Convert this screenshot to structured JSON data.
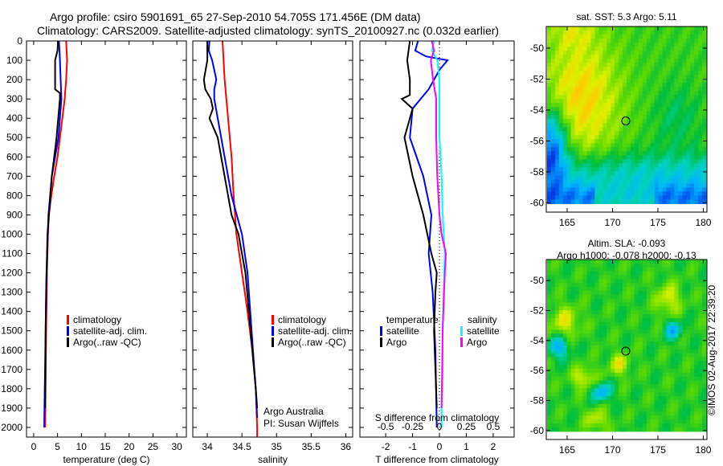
{
  "title": {
    "line1": "Argo profile: csiro 5901691_65 27-Sep-2010 54.705S 171.456E (DM data)",
    "line2": "Climatology: CARS2009. Satellite-adjusted climatology: synTS_20100927.nc (0.032d earlier)"
  },
  "credit": "©IMOS 02-Aug-2017 22:39:20",
  "colors": {
    "climatology": "#ff0000",
    "satellite": "#0000ff",
    "argo": "#000000",
    "sal_satellite": "#00ffff",
    "sal_argo": "#ff00ff"
  },
  "chart_data": [
    {
      "type": "line",
      "xlabel": "temperature (deg C)",
      "xticks": [
        0,
        5,
        10,
        15,
        20,
        25,
        30
      ],
      "xlim": [
        -1.5,
        32
      ],
      "ylim": [
        0,
        2050
      ],
      "yticks": [
        0,
        100,
        200,
        300,
        400,
        500,
        600,
        700,
        800,
        900,
        1000,
        1100,
        1200,
        1300,
        1400,
        1500,
        1600,
        1700,
        1800,
        1900,
        2000
      ],
      "legend": [
        "climatology",
        "satellite-adj. clim.",
        "Argo(..raw -QC)"
      ],
      "series": [
        {
          "name": "climatology",
          "color": "#ff0000",
          "depth": [
            0,
            100,
            200,
            300,
            400,
            500,
            600,
            700,
            800,
            900,
            1000,
            1200,
            1500,
            2000
          ],
          "values": [
            6.8,
            7.0,
            6.8,
            6.5,
            6.0,
            5.5,
            5.0,
            4.3,
            3.7,
            3.2,
            3.0,
            2.8,
            2.6,
            2.4
          ]
        },
        {
          "name": "satellite-adj. clim.",
          "color": "#0000ff",
          "depth": [
            0,
            100,
            300,
            500,
            700,
            900,
            1200,
            1500,
            2000
          ],
          "values": [
            5.3,
            5.5,
            5.8,
            5.2,
            3.8,
            3.1,
            2.7,
            2.5,
            2.2
          ]
        },
        {
          "name": "Argo(..raw -QC)",
          "color": "#000000",
          "depth": [
            0,
            50,
            100,
            250,
            270,
            300,
            500,
            700,
            900,
            1000,
            1300,
            1500,
            1900
          ],
          "values": [
            5.1,
            5.0,
            4.5,
            4.5,
            5.5,
            5.5,
            4.8,
            3.8,
            3.2,
            2.9,
            2.6,
            2.5,
            2.4
          ]
        }
      ]
    },
    {
      "type": "line",
      "xlabel": "salinity",
      "xticks": [
        34,
        34.5,
        35,
        35.5,
        36
      ],
      "xlim": [
        33.79,
        36.1
      ],
      "ylim": [
        0,
        2050
      ],
      "legend": [
        "climatology",
        "satellite-adj. clim.",
        "Argo(..raw -QC)"
      ],
      "annotation": [
        "Argo Australia",
        "PI: Susan Wijffels"
      ],
      "series": [
        {
          "name": "climatology",
          "color": "#ff0000",
          "depth": [
            0,
            200,
            400,
            600,
            800,
            1000,
            1200,
            1400,
            1600,
            1800,
            2000,
            2050
          ],
          "values": [
            34.22,
            34.25,
            34.3,
            34.35,
            34.38,
            34.42,
            34.5,
            34.58,
            34.65,
            34.7,
            34.72,
            34.72
          ]
        },
        {
          "name": "satellite-adj. clim.",
          "color": "#0000ff",
          "depth": [
            0,
            50,
            100,
            200,
            250,
            300,
            400,
            600,
            800,
            1000,
            1200,
            1400,
            1600,
            1800,
            1950
          ],
          "values": [
            34.03,
            34.02,
            34.07,
            34.13,
            34.1,
            34.1,
            34.15,
            34.25,
            34.35,
            34.5,
            34.58,
            34.62,
            34.66,
            34.7,
            34.72
          ]
        },
        {
          "name": "Argo(..raw -QC)",
          "color": "#000000",
          "depth": [
            0,
            100,
            200,
            250,
            300,
            350,
            400,
            500,
            700,
            900,
            1000,
            1200,
            1400,
            1600,
            1800,
            1900
          ],
          "values": [
            34.0,
            34.0,
            33.95,
            33.97,
            34.05,
            34.08,
            34.03,
            34.15,
            34.25,
            34.35,
            34.45,
            34.55,
            34.6,
            34.65,
            34.7,
            34.72
          ]
        }
      ]
    },
    {
      "type": "line",
      "xlabel": "T difference from climatology",
      "xticks": [
        -2,
        -1,
        0,
        1,
        2
      ],
      "xlim": [
        -2.96,
        2.78
      ],
      "x2label": "S difference from climatology",
      "x2ticks": [
        -0.5,
        -0.25,
        0,
        0.25,
        0.5
      ],
      "x2tick_labels": [
        "-0.5",
        "-0.25",
        "0",
        "0.25",
        "0.5"
      ],
      "ylim": [
        0,
        2050
      ],
      "legend_headers": [
        "temperature",
        "salinity"
      ],
      "legend": [
        "satellite",
        "Argo",
        "satellite",
        "Argo"
      ],
      "series": [
        {
          "name": "T satellite",
          "color": "#0000ff",
          "axis": "T",
          "depth": [
            0,
            50,
            80,
            100,
            150,
            250,
            350,
            500,
            700,
            900,
            1100,
            1300,
            1600,
            2000
          ],
          "values": [
            -0.8,
            -0.9,
            -0.5,
            0.3,
            0.0,
            -0.4,
            -1.0,
            -1.1,
            -0.6,
            -0.3,
            -0.4,
            -0.25,
            -0.15,
            -0.1
          ]
        },
        {
          "name": "T Argo",
          "color": "#000000",
          "axis": "T",
          "depth": [
            0,
            100,
            200,
            280,
            300,
            350,
            500,
            700,
            900,
            1100,
            1200,
            1300,
            1500,
            1900
          ],
          "values": [
            -1.1,
            -1.2,
            -1.1,
            -1.1,
            -1.4,
            -1.0,
            -1.3,
            -1.0,
            -0.6,
            -0.3,
            -0.1,
            -0.15,
            -0.2,
            -0.1
          ]
        },
        {
          "name": "S satellite",
          "color": "#00ffff",
          "axis": "S",
          "depth": [
            0,
            50,
            100,
            200,
            300,
            500,
            700,
            900,
            1100,
            1300,
            1500,
            1700,
            1900,
            2000
          ],
          "values": [
            -0.05,
            -0.07,
            -0.02,
            0,
            0,
            0,
            0.02,
            0.03,
            0.05,
            0.04,
            0.03,
            0.03,
            0.02,
            0.02
          ]
        },
        {
          "name": "S Argo",
          "color": "#ff00ff",
          "axis": "S",
          "depth": [
            0,
            50,
            100,
            200,
            300,
            500,
            700,
            900,
            1000,
            1100,
            1200,
            1500,
            1900
          ],
          "values": [
            -0.07,
            -0.05,
            -0.08,
            -0.06,
            -0.03,
            -0.03,
            -0.02,
            0,
            0.02,
            0.06,
            0.05,
            0.03,
            0.02
          ]
        }
      ]
    },
    {
      "type": "heatmap",
      "title": "sat. SST: 5.3 Argo: 5.11",
      "xticks": [
        165,
        170,
        175,
        180
      ],
      "yticks": [
        -50,
        -52,
        -54,
        -56,
        -58,
        -60
      ],
      "xlim": [
        162.7,
        180.4
      ],
      "ylim": [
        -60.6,
        -48.6
      ],
      "marker": {
        "lon": 171.456,
        "lat": -54.705
      }
    },
    {
      "type": "heatmap",
      "title": "Altim. SLA: -0.093",
      "subtitle": "Argo h1000: -0.078 h2000: -0.13",
      "xticks": [
        165,
        170,
        175,
        180
      ],
      "yticks": [
        -50,
        -52,
        -54,
        -56,
        -58,
        -60
      ],
      "xlim": [
        162.7,
        180.4
      ],
      "ylim": [
        -60.6,
        -48.6
      ],
      "marker": {
        "lon": 171.456,
        "lat": -54.705
      }
    }
  ]
}
